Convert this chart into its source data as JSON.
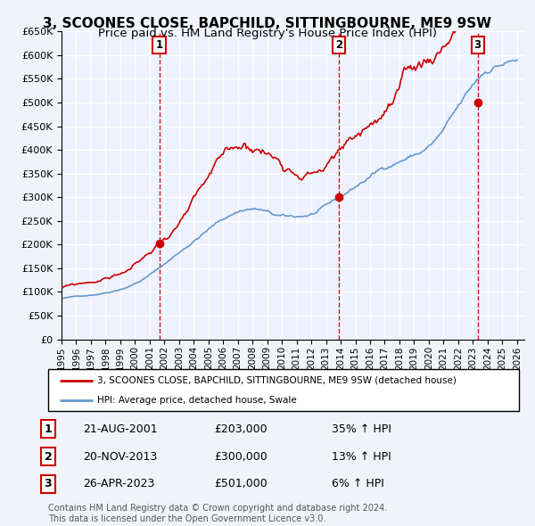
{
  "title": "3, SCOONES CLOSE, BAPCHILD, SITTINGBOURNE, ME9 9SW",
  "subtitle": "Price paid vs. HM Land Registry's House Price Index (HPI)",
  "ylim": [
    0,
    650000
  ],
  "yticks": [
    0,
    50000,
    100000,
    150000,
    200000,
    250000,
    300000,
    350000,
    400000,
    450000,
    500000,
    550000,
    600000,
    650000
  ],
  "xlim_start": 1995.0,
  "xlim_end": 2026.5,
  "legend_line1": "3, SCOONES CLOSE, BAPCHILD, SITTINGBOURNE, ME9 9SW (detached house)",
  "legend_line2": "HPI: Average price, detached house, Swale",
  "sale1_date": "21-AUG-2001",
  "sale1_price": "£203,000",
  "sale1_pct": "35% ↑ HPI",
  "sale2_date": "20-NOV-2013",
  "sale2_price": "£300,000",
  "sale2_pct": "13% ↑ HPI",
  "sale3_date": "26-APR-2023",
  "sale3_price": "£501,000",
  "sale3_pct": "6% ↑ HPI",
  "footer1": "Contains HM Land Registry data © Crown copyright and database right 2024.",
  "footer2": "This data is licensed under the Open Government Licence v3.0.",
  "red_color": "#cc0000",
  "blue_color": "#6699cc",
  "background_color": "#eef2ff",
  "grid_color": "#ffffff",
  "sale_marker_color": "#cc0000",
  "sale_vline_color": "#cc0000",
  "title_fontsize": 11,
  "subtitle_fontsize": 9.5,
  "sale1_x": 2001.646,
  "sale2_x": 2013.896,
  "sale3_x": 2023.32,
  "sale1_y": 203000,
  "sale2_y": 300000,
  "sale3_y": 501000
}
